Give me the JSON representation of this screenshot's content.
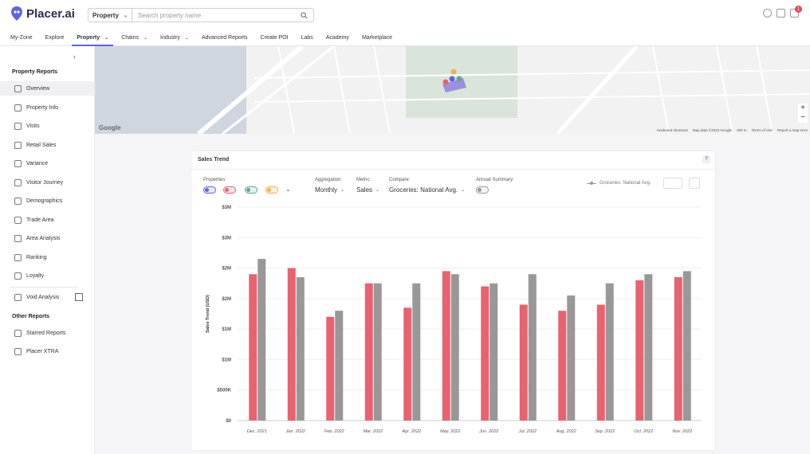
{
  "app": {
    "logo_text": "Placer.ai"
  },
  "search": {
    "type_label": "Property",
    "placeholder": "Search property name"
  },
  "topbar": {
    "notification_count": "1"
  },
  "nav": {
    "items": [
      {
        "label": "My-Zone",
        "chevron": false
      },
      {
        "label": "Explore",
        "chevron": false
      },
      {
        "label": "Property",
        "chevron": true,
        "active": true
      },
      {
        "label": "Chains",
        "chevron": true
      },
      {
        "label": "Industry",
        "chevron": true
      },
      {
        "label": "Advanced Reports",
        "chevron": false
      },
      {
        "label": "Create POI",
        "chevron": false
      },
      {
        "label": "Labs",
        "chevron": false
      },
      {
        "label": "Academy",
        "chevron": false
      },
      {
        "label": "Marketplace",
        "chevron": false
      }
    ]
  },
  "sidebar": {
    "section_property": "Property Reports",
    "items": [
      {
        "label": "Overview",
        "icon": "overview-icon"
      },
      {
        "label": "Property Info",
        "icon": "property-info-icon"
      },
      {
        "label": "Visits",
        "icon": "visits-icon"
      },
      {
        "label": "Retail Sales",
        "icon": "retail-sales-icon"
      },
      {
        "label": "Variance",
        "icon": "variance-icon"
      },
      {
        "label": "Visitor Journey",
        "icon": "visitor-journey-icon"
      },
      {
        "label": "Demographics",
        "icon": "demographics-icon"
      },
      {
        "label": "Trade Area",
        "icon": "trade-area-icon"
      },
      {
        "label": "Area Analysis",
        "icon": "area-analysis-icon"
      },
      {
        "label": "Ranking",
        "icon": "ranking-icon"
      },
      {
        "label": "Loyalty",
        "icon": "loyalty-icon"
      },
      {
        "label": "Void Analysis",
        "icon": "void-analysis-icon"
      }
    ],
    "section_other": "Other Reports",
    "other_items": [
      {
        "label": "Starred Reports",
        "icon": "star-icon"
      },
      {
        "label": "Placer XTRA",
        "icon": "placer-xtra-icon"
      }
    ]
  },
  "map": {
    "footer": {
      "shortcuts": "Keyboard shortcuts",
      "data": "Map data ©2023 Google",
      "scale": "200 m",
      "terms": "Terms of Use",
      "report": "Report a map error"
    },
    "google_label": "Google",
    "zoom_in": "+",
    "zoom_out": "−"
  },
  "card": {
    "title": "Sales Trend",
    "help": "?",
    "properties_label": "Properties:",
    "aggregation_label": "Aggregation:",
    "aggregation_value": "Monthly",
    "metric_label": "Metric:",
    "metric_value": "Sales",
    "compare_label": "Compare:",
    "compare_value": "Groceries: National Avg.",
    "annual_label": "Annual Summary:",
    "legend_label": "Groceries: National Avg.",
    "colors": {
      "property": "#e8626f",
      "benchmark": "#9a9799",
      "toggle1": "#5e63e6",
      "toggle2": "#e8626f",
      "toggle3": "#5fa596",
      "toggle4": "#f0b34a"
    }
  },
  "chart_data": {
    "type": "bar",
    "title": "Sales Trend",
    "ylabel": "Sales Trend (USD)",
    "ylim": [
      0,
      3500000
    ],
    "y_ticks": [
      "$0",
      "$500K",
      "$1M",
      "$1M",
      "$2M",
      "$2M",
      "$3M",
      "$3M"
    ],
    "categories": [
      "Dec. 2021",
      "Jan. 2022",
      "Feb. 2022",
      "Mar. 2022",
      "Apr. 2022",
      "May. 2022",
      "Jun. 2022",
      "Jul. 2022",
      "Aug. 2022",
      "Sep. 2022",
      "Oct. 2022",
      "Nov. 2022"
    ],
    "series": [
      {
        "name": "",
        "values": [
          2400000,
          2500000,
          1700000,
          2250000,
          1850000,
          2450000,
          2200000,
          1900000,
          1800000,
          1900000,
          2300000,
          2350000
        ]
      },
      {
        "name": "Groceries: National Avg.",
        "values": [
          2650000,
          2350000,
          1800000,
          2250000,
          2250000,
          2400000,
          2250000,
          2400000,
          2050000,
          2250000,
          2400000,
          2450000
        ]
      }
    ]
  }
}
